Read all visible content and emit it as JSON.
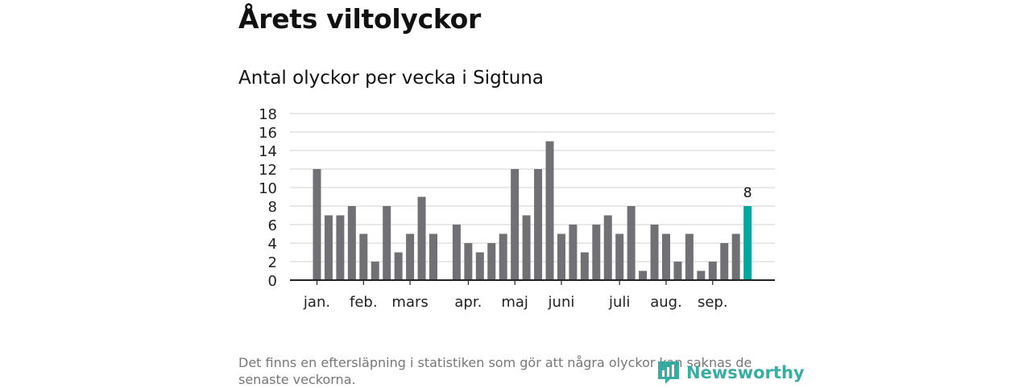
{
  "header": {
    "title": "Årets viltolyckor"
  },
  "chart_data": {
    "type": "bar",
    "title": "Antal olyckor per vecka i Sigtuna",
    "xlabel": "",
    "ylabel": "",
    "ylim": [
      0,
      18
    ],
    "yticks": [
      0,
      2,
      4,
      6,
      8,
      10,
      12,
      14,
      16,
      18
    ],
    "grid": true,
    "values": [
      12,
      7,
      7,
      8,
      5,
      2,
      8,
      3,
      5,
      9,
      5,
      null,
      6,
      4,
      3,
      4,
      5,
      12,
      7,
      12,
      15,
      5,
      6,
      3,
      6,
      7,
      5,
      8,
      1,
      6,
      5,
      2,
      5,
      1,
      2,
      4,
      5,
      8
    ],
    "month_labels": [
      {
        "label": "jan.",
        "week_index": 0
      },
      {
        "label": "feb.",
        "week_index": 4
      },
      {
        "label": "mars",
        "week_index": 8
      },
      {
        "label": "apr.",
        "week_index": 13
      },
      {
        "label": "maj",
        "week_index": 17
      },
      {
        "label": "juni",
        "week_index": 21
      },
      {
        "label": "juli",
        "week_index": 26
      },
      {
        "label": "aug.",
        "week_index": 30
      },
      {
        "label": "sep.",
        "week_index": 34
      }
    ],
    "highlight_index": 37,
    "highlight_label": "8",
    "colors": {
      "bar": "#717074",
      "highlight": "#00a99d",
      "grid": "#d9d9d9",
      "axis": "#222222"
    }
  },
  "footer": {
    "note": "Det finns en eftersläpning i statistiken som gör att några olyckor kan saknas de senaste veckorna.",
    "brand": "Newsworthy"
  }
}
